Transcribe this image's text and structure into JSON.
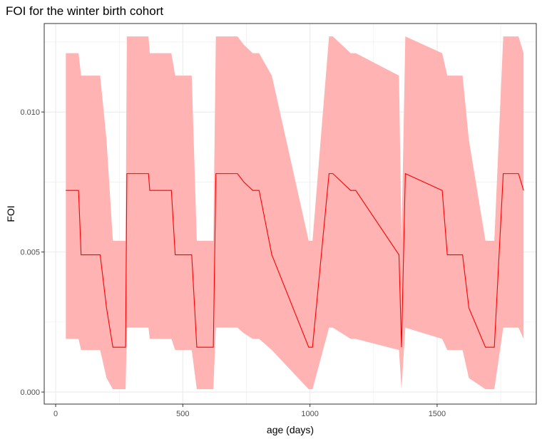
{
  "chart_data": {
    "type": "line",
    "title": "FOI for the winter birth cohort",
    "xlabel": "age (days)",
    "ylabel": "FOI",
    "xlim": [
      -45,
      1890
    ],
    "ylim": [
      -0.00043,
      0.01316
    ],
    "x_ticks": [
      0,
      500,
      1000,
      1500
    ],
    "y_ticks": [
      0.0,
      0.005,
      0.01
    ],
    "y_tick_labels": [
      "0.000",
      "0.005",
      "0.010"
    ],
    "grid": true,
    "legend": "none",
    "colors": {
      "line": "#ff0000",
      "band": "#ffb3b3",
      "grid": "#ebebeb",
      "panel_border": "#333333"
    },
    "series": [
      {
        "type": "ribbon-line",
        "x": [
          40,
          90,
          100,
          175,
          200,
          225,
          275,
          280,
          365,
          370,
          455,
          470,
          535,
          555,
          620,
          630,
          715,
          740,
          775,
          800,
          850,
          995,
          1010,
          1075,
          1090,
          1160,
          1180,
          1350,
          1360,
          1375,
          1520,
          1540,
          1600,
          1625,
          1690,
          1725,
          1760,
          1820,
          1840
        ],
        "y": [
          0.0072,
          0.0072,
          0.0049,
          0.0049,
          0.003,
          0.0016,
          0.0016,
          0.0078,
          0.0078,
          0.0072,
          0.0072,
          0.0049,
          0.0049,
          0.0016,
          0.0016,
          0.0078,
          0.0078,
          0.0075,
          0.0072,
          0.0072,
          0.0049,
          0.0016,
          0.0016,
          0.0078,
          0.0078,
          0.0072,
          0.0072,
          0.0049,
          0.0016,
          0.0078,
          0.0072,
          0.0049,
          0.0049,
          0.003,
          0.0016,
          0.0016,
          0.0078,
          0.0078,
          0.0072
        ],
        "lower": [
          0.0019,
          0.0019,
          0.0015,
          0.0015,
          0.0005,
          0.0001,
          0.0001,
          0.0023,
          0.0023,
          0.0019,
          0.0019,
          0.0015,
          0.0015,
          0.0001,
          0.0001,
          0.0023,
          0.0023,
          0.0021,
          0.0019,
          0.0019,
          0.0015,
          0.0001,
          0.0001,
          0.0023,
          0.0023,
          0.0019,
          0.0019,
          0.0015,
          0.0001,
          0.0023,
          0.0019,
          0.0015,
          0.0015,
          0.0005,
          0.0001,
          0.0001,
          0.0023,
          0.0023,
          0.0019
        ],
        "upper": [
          0.0121,
          0.0121,
          0.0113,
          0.0113,
          0.009,
          0.0054,
          0.0054,
          0.0127,
          0.0127,
          0.0121,
          0.0121,
          0.0113,
          0.0113,
          0.0054,
          0.0054,
          0.0127,
          0.0127,
          0.0124,
          0.0121,
          0.0121,
          0.0113,
          0.0054,
          0.0054,
          0.0127,
          0.0127,
          0.0121,
          0.0121,
          0.0113,
          0.0054,
          0.0127,
          0.0121,
          0.0113,
          0.0113,
          0.009,
          0.0054,
          0.0054,
          0.0127,
          0.0127,
          0.0121
        ]
      }
    ]
  }
}
